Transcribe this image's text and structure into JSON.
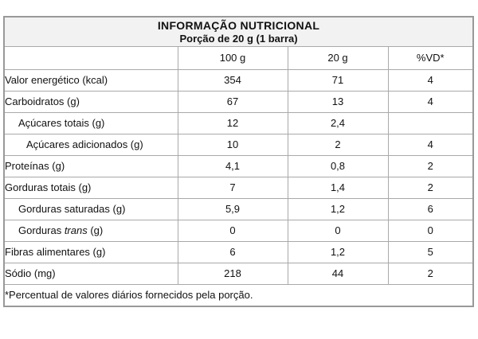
{
  "table": {
    "title": "INFORMAÇÃO NUTRICIONAL",
    "subtitle": "Porção de 20 g (1 barra)",
    "columns": [
      "",
      "100 g",
      "20 g",
      "%VD*"
    ],
    "rows": [
      {
        "label": "Valor energético (kcal)",
        "indent": 0,
        "italic_word": null,
        "values": [
          "354",
          "71",
          "4"
        ]
      },
      {
        "label": "Carboidratos (g)",
        "indent": 0,
        "italic_word": null,
        "values": [
          "67",
          "13",
          "4"
        ]
      },
      {
        "label": "Açúcares totais (g)",
        "indent": 1,
        "italic_word": null,
        "values": [
          "12",
          "2,4",
          ""
        ]
      },
      {
        "label": "Açúcares adicionados (g)",
        "indent": 2,
        "italic_word": null,
        "values": [
          "10",
          "2",
          "4"
        ]
      },
      {
        "label": "Proteínas (g)",
        "indent": 0,
        "italic_word": null,
        "values": [
          "4,1",
          "0,8",
          "2"
        ]
      },
      {
        "label": "Gorduras totais (g)",
        "indent": 0,
        "italic_word": null,
        "values": [
          "7",
          "1,4",
          "2"
        ]
      },
      {
        "label": "Gorduras saturadas (g)",
        "indent": 1,
        "italic_word": null,
        "values": [
          "5,9",
          "1,2",
          "6"
        ]
      },
      {
        "label": "Gorduras trans (g)",
        "indent": 1,
        "italic_word": "trans",
        "values": [
          "0",
          "0",
          "0"
        ]
      },
      {
        "label": "Fibras alimentares (g)",
        "indent": 0,
        "italic_word": null,
        "values": [
          "6",
          "1,2",
          "5"
        ]
      },
      {
        "label": "Sódio (mg)",
        "indent": 0,
        "italic_word": null,
        "values": [
          "218",
          "44",
          "2"
        ]
      }
    ],
    "footnote": "*Percentual de valores diários fornecidos pela porção."
  },
  "colors": {
    "title_background": "#f2f2f2",
    "border": "#a9a9a9",
    "text": "#111111",
    "page_background": "#ffffff"
  }
}
